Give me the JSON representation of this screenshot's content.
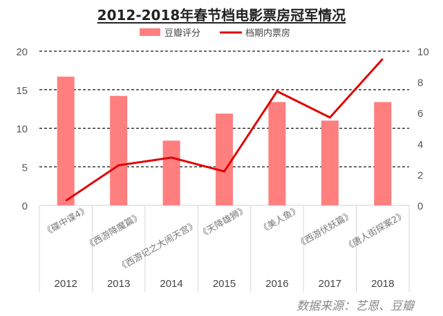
{
  "chart_data": {
    "type": "bar+line",
    "title": "2012-2018年春节档电影票房冠军情况",
    "categories": [
      "2012",
      "2013",
      "2014",
      "2015",
      "2016",
      "2017",
      "2018"
    ],
    "films": [
      "《碟中谍4》",
      "《西游降魔篇》",
      "《西游记之大闹天宫》",
      "《天降雄狮》",
      "《美人鱼》",
      "《西游伏妖篇》",
      "《唐人街探案2》"
    ],
    "series": [
      {
        "name": "豆瓣评分",
        "type": "bar",
        "axis": "left",
        "color": "#ff7f7f",
        "values": [
          16.7,
          14.2,
          8.4,
          11.9,
          13.4,
          11.0,
          13.4
        ]
      },
      {
        "name": "档期内票房",
        "type": "line",
        "axis": "right",
        "color": "#e00000",
        "values": [
          0.3,
          2.6,
          3.1,
          2.2,
          7.4,
          5.7,
          9.5
        ]
      }
    ],
    "ylim_left": [
      0,
      20
    ],
    "yticks_left": [
      "0",
      "5",
      "10",
      "15",
      "20"
    ],
    "ylim_right": [
      0,
      10
    ],
    "yticks_right": [
      "0",
      "2",
      "4",
      "6",
      "8",
      "10"
    ],
    "grid": "dashed horizontal",
    "legend": "top"
  },
  "source": "数据来源：艺恩、豆瓣"
}
